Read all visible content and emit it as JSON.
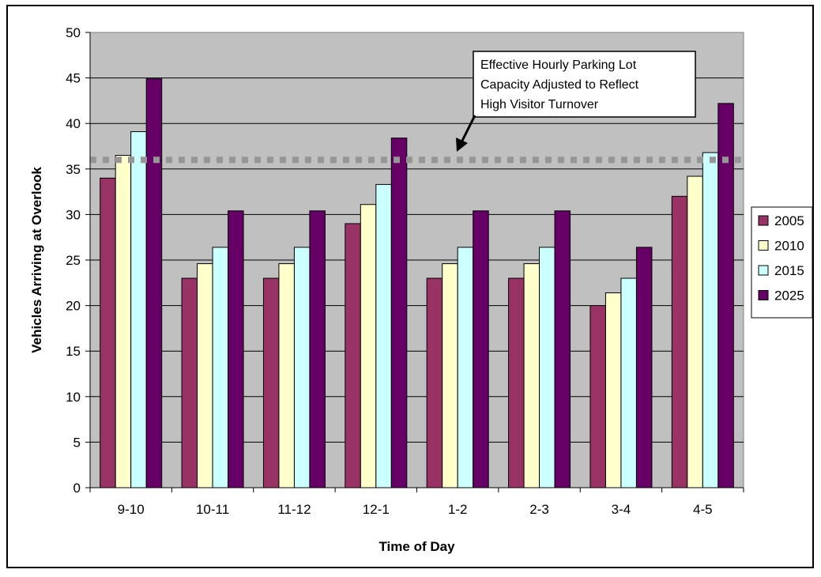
{
  "chart_data": {
    "type": "bar",
    "categories": [
      "9-10",
      "10-11",
      "11-12",
      "12-1",
      "1-2",
      "2-3",
      "3-4",
      "4-5"
    ],
    "series": [
      {
        "name": "2005",
        "color": "#993366",
        "values": [
          34,
          23,
          23,
          29,
          23,
          23,
          20,
          32
        ]
      },
      {
        "name": "2010",
        "color": "#FFFFCC",
        "values": [
          36.5,
          24.6,
          24.6,
          31.1,
          24.6,
          24.6,
          21.4,
          34.2
        ]
      },
      {
        "name": "2015",
        "color": "#CCFFFF",
        "values": [
          39.1,
          26.4,
          26.4,
          33.3,
          26.4,
          26.4,
          23,
          36.8
        ]
      },
      {
        "name": "2025",
        "color": "#660066",
        "values": [
          44.9,
          30.4,
          30.4,
          38.4,
          30.4,
          30.4,
          26.4,
          42.2
        ]
      }
    ],
    "xlabel": "Time of Day",
    "ylabel": "Vehicles Arriving at Overlook",
    "ylim": [
      0,
      50
    ],
    "yticks": [
      0,
      5,
      10,
      15,
      20,
      25,
      30,
      35,
      40,
      45,
      50
    ],
    "grid": true,
    "plot_background": "#C0C0C0",
    "legend_position": "right",
    "reference_line": {
      "value": 36,
      "color": "#969696",
      "style": "dotted",
      "annotation": [
        "Effective Hourly Parking Lot",
        "Capacity Adjusted to Reflect",
        "High Visitor Turnover"
      ]
    }
  }
}
